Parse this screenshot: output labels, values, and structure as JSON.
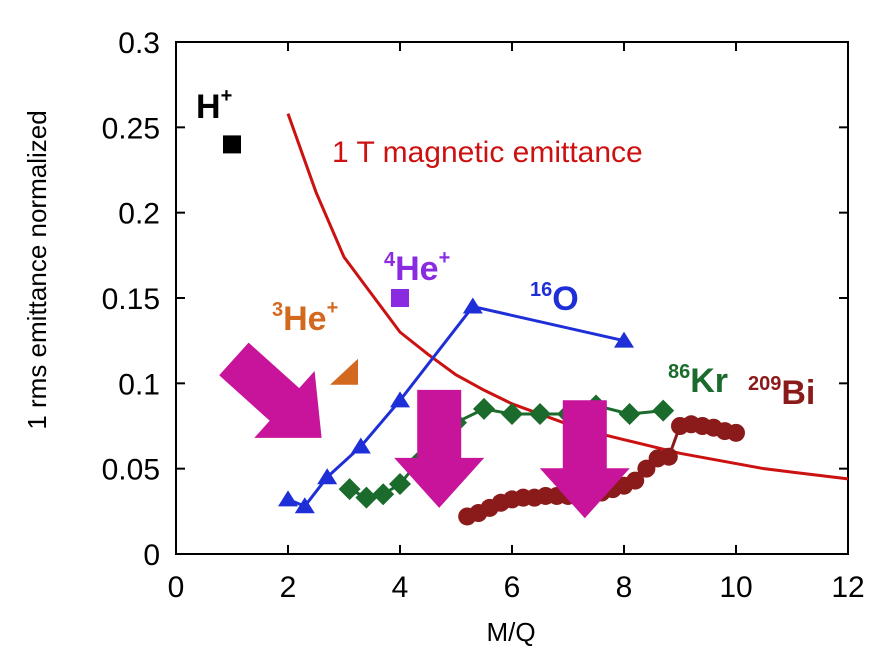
{
  "chart_data": {
    "type": "line",
    "xlabel": "M/Q",
    "ylabel": "1 rms emittance normalized",
    "xlim": [
      0,
      12
    ],
    "ylim": [
      0,
      0.3
    ],
    "x_ticks": [
      "0",
      "2",
      "4",
      "6",
      "8",
      "10",
      "12"
    ],
    "y_ticks": [
      "0",
      "0.05",
      "0.1",
      "0.15",
      "0.2",
      "0.25",
      "0.3"
    ],
    "grid": false,
    "series": [
      {
        "name": "H",
        "sup": "+",
        "label_color": "#000000",
        "color": "#000000",
        "marker": "square",
        "line": false,
        "x": [
          1.0
        ],
        "y": [
          0.24
        ]
      },
      {
        "name": "He",
        "pre": "3",
        "sup": "+",
        "label_color": "#d2691e",
        "color": "#d2691e",
        "marker": "triangle-corner",
        "line": false,
        "x": [
          3.0
        ],
        "y": [
          0.105
        ]
      },
      {
        "name": "He",
        "pre": "4",
        "sup": "+",
        "label_color": "#8a2be2",
        "color": "#8a2be2",
        "marker": "square",
        "line": false,
        "x": [
          4.0
        ],
        "y": [
          0.15
        ]
      },
      {
        "name": "O",
        "pre": "16",
        "label_color": "#1f2fd8",
        "color": "#1f2fd8",
        "marker": "triangle",
        "line": true,
        "x": [
          2.0,
          2.3,
          2.7,
          3.3,
          4.0,
          5.3,
          8.0
        ],
        "y": [
          0.032,
          0.028,
          0.045,
          0.063,
          0.09,
          0.145,
          0.125
        ]
      },
      {
        "name": "Kr",
        "pre": "86",
        "label_color": "#1a6b2c",
        "color": "#1a6b2c",
        "marker": "diamond",
        "line": true,
        "x": [
          3.1,
          3.4,
          3.7,
          4.0,
          4.3,
          4.6,
          5.0,
          5.5,
          6.0,
          6.5,
          7.0,
          7.5,
          8.1,
          8.7
        ],
        "y": [
          0.038,
          0.033,
          0.035,
          0.041,
          0.053,
          0.07,
          0.077,
          0.085,
          0.082,
          0.082,
          0.082,
          0.087,
          0.082,
          0.084
        ]
      },
      {
        "name": "Bi",
        "pre": "209",
        "label_color": "#8b1a1a",
        "color": "#8b1a1a",
        "marker": "circle",
        "line": true,
        "x": [
          5.2,
          5.4,
          5.6,
          5.8,
          6.0,
          6.2,
          6.4,
          6.6,
          6.8,
          7.0,
          7.2,
          7.4,
          7.6,
          7.8,
          8.0,
          8.2,
          8.4,
          8.6,
          8.8,
          9.0,
          9.2,
          9.4,
          9.6,
          9.8,
          10.0
        ],
        "y": [
          0.022,
          0.024,
          0.027,
          0.03,
          0.032,
          0.033,
          0.033,
          0.034,
          0.034,
          0.034,
          0.034,
          0.035,
          0.036,
          0.038,
          0.04,
          0.043,
          0.05,
          0.056,
          0.057,
          0.075,
          0.076,
          0.075,
          0.074,
          0.072,
          0.071
        ]
      }
    ],
    "curve": {
      "name": "1 T magnetic emittance",
      "color": "#cc1111",
      "x": [
        2.0,
        2.5,
        3.0,
        3.5,
        4.0,
        4.5,
        5.0,
        5.5,
        6.0,
        6.5,
        7.0,
        7.5,
        8.0,
        8.5,
        9.0,
        9.5,
        10.0,
        10.5,
        11.0,
        11.5,
        12.0
      ],
      "y": [
        0.258,
        0.212,
        0.174,
        0.152,
        0.13,
        0.117,
        0.105,
        0.096,
        0.088,
        0.082,
        0.076,
        0.071,
        0.067,
        0.063,
        0.059,
        0.056,
        0.053,
        0.05,
        0.048,
        0.046,
        0.044
      ]
    },
    "annotations": {
      "arrow_color": "#c8149b",
      "arrows": [
        {
          "tip": [
            2.6,
            0.068
          ],
          "angle_deg": 42
        },
        {
          "tip": [
            4.7,
            0.027
          ],
          "angle_deg": 90
        },
        {
          "tip": [
            7.3,
            0.021
          ],
          "angle_deg": 90
        }
      ]
    }
  }
}
